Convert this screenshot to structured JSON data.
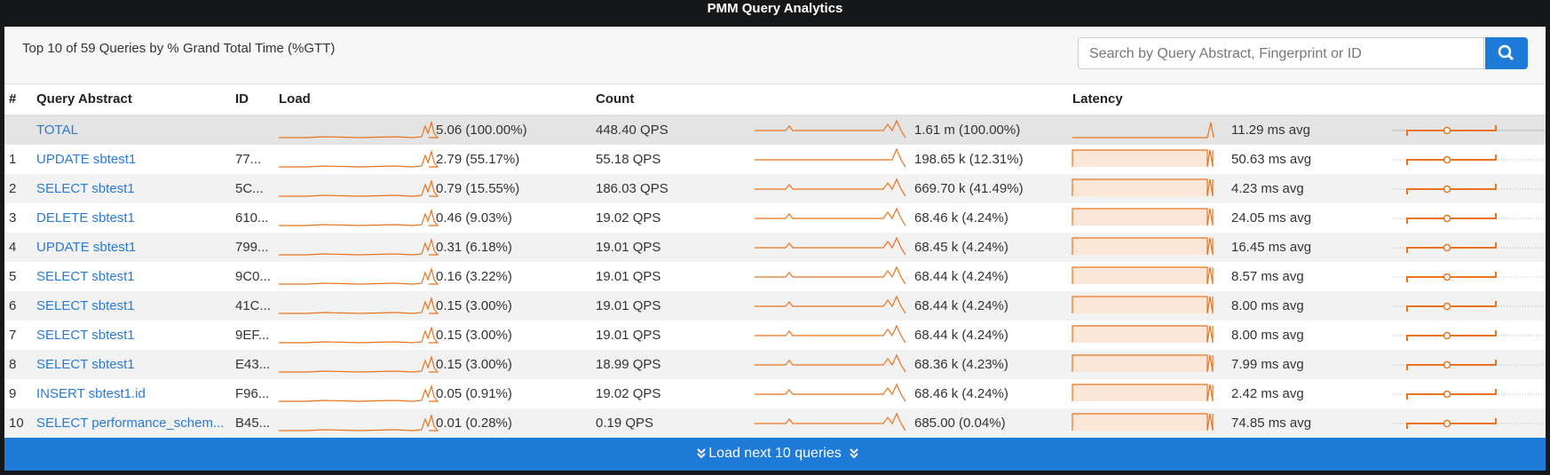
{
  "header": {
    "title": "PMM Query Analytics"
  },
  "summary": {
    "text": "Top 10 of 59 Queries by % Grand Total Time (%GTT)",
    "search_placeholder": "Search by Query Abstract, Fingerprint or ID"
  },
  "table": {
    "columns": [
      "#",
      "Query Abstract",
      "ID",
      "Load",
      "Count",
      "Latency"
    ],
    "rows": [
      {
        "abstract": "TOTAL",
        "load": "5.06 (100.00%)",
        "qps": "448.40 QPS",
        "count": "1.61 m (100.00%)",
        "latency": "11.29 ms avg"
      },
      {
        "rank": 1,
        "abstract": "UPDATE sbtest1",
        "id": "77...",
        "load": "2.79 (55.17%)",
        "qps": "55.18 QPS",
        "count": "198.65 k (12.31%)",
        "latency": "50.63 ms avg"
      },
      {
        "rank": 2,
        "abstract": "SELECT sbtest1",
        "id": "5C...",
        "load": "0.79 (15.55%)",
        "qps": "186.03 QPS",
        "count": "669.70 k (41.49%)",
        "latency": "4.23 ms avg"
      },
      {
        "rank": 3,
        "abstract": "DELETE sbtest1",
        "id": "610...",
        "load": "0.46 (9.03%)",
        "qps": "19.02 QPS",
        "count": "68.46 k (4.24%)",
        "latency": "24.05 ms avg"
      },
      {
        "rank": 4,
        "abstract": "UPDATE sbtest1",
        "id": "799...",
        "load": "0.31 (6.18%)",
        "qps": "19.01 QPS",
        "count": "68.45 k (4.24%)",
        "latency": "16.45 ms avg"
      },
      {
        "rank": 5,
        "abstract": "SELECT sbtest1",
        "id": "9C0...",
        "load": "0.16 (3.22%)",
        "qps": "19.01 QPS",
        "count": "68.44 k (4.24%)",
        "latency": "8.57 ms avg"
      },
      {
        "rank": 6,
        "abstract": "SELECT sbtest1",
        "id": "41C...",
        "load": "0.15 (3.00%)",
        "qps": "19.01 QPS",
        "count": "68.44 k (4.24%)",
        "latency": "8.00 ms avg"
      },
      {
        "rank": 7,
        "abstract": "SELECT sbtest1",
        "id": "9EF...",
        "load": "0.15 (3.00%)",
        "qps": "19.01 QPS",
        "count": "68.44 k (4.24%)",
        "latency": "8.00 ms avg"
      },
      {
        "rank": 8,
        "abstract": "SELECT sbtest1",
        "id": "E43...",
        "load": "0.15 (3.00%)",
        "qps": "18.99 QPS",
        "count": "68.36 k (4.23%)",
        "latency": "7.99 ms avg"
      },
      {
        "rank": 9,
        "abstract": "INSERT sbtest1.id",
        "id": "F96...",
        "load": "0.05 (0.91%)",
        "qps": "19.02 QPS",
        "count": "68.46 k (4.24%)",
        "latency": "2.42 ms avg"
      },
      {
        "rank": 10,
        "abstract": "SELECT performance_schem...",
        "id": "B45...",
        "load": "0.01 (0.28%)",
        "qps": "0.19 QPS",
        "count": "685.00 (0.04%)",
        "latency": "74.85 ms avg"
      }
    ]
  },
  "footer": {
    "button": "Load next 10 queries"
  }
}
